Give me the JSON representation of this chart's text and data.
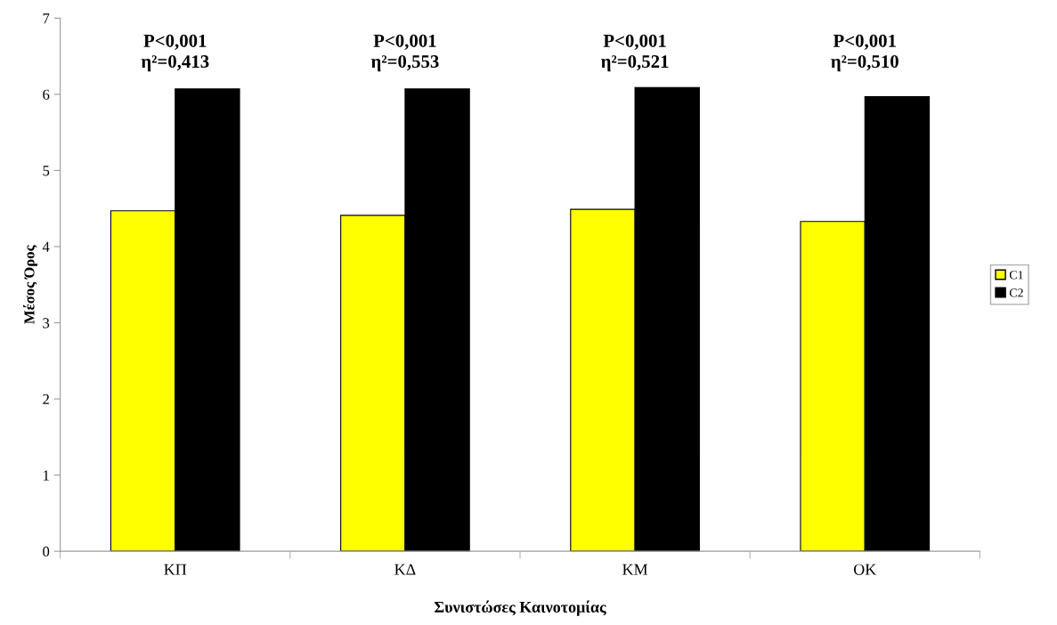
{
  "chart_data": {
    "type": "bar",
    "xlabel": "Συνιστώσες Καινοτομίας",
    "ylabel": "Μέσος Όρος",
    "categories": [
      "ΚΠ",
      "ΚΔ",
      "ΚΜ",
      "ΟΚ"
    ],
    "series": [
      {
        "name": "C1",
        "color": "#ffff00",
        "values": [
          4.47,
          4.41,
          4.49,
          4.33
        ]
      },
      {
        "name": "C2",
        "color": "#000000",
        "values": [
          6.07,
          6.07,
          6.09,
          5.97
        ]
      }
    ],
    "ylim": [
      0,
      7
    ],
    "yticks": [
      0,
      1,
      2,
      3,
      4,
      5,
      6,
      7
    ],
    "grid": false,
    "legend": "right",
    "annotations": [
      "P<0,001\nη²=0,413",
      "P<0,001\nη²=0,553",
      "P<0,001\nη²=0,521",
      "P<0,001\nη²=0,510"
    ]
  }
}
